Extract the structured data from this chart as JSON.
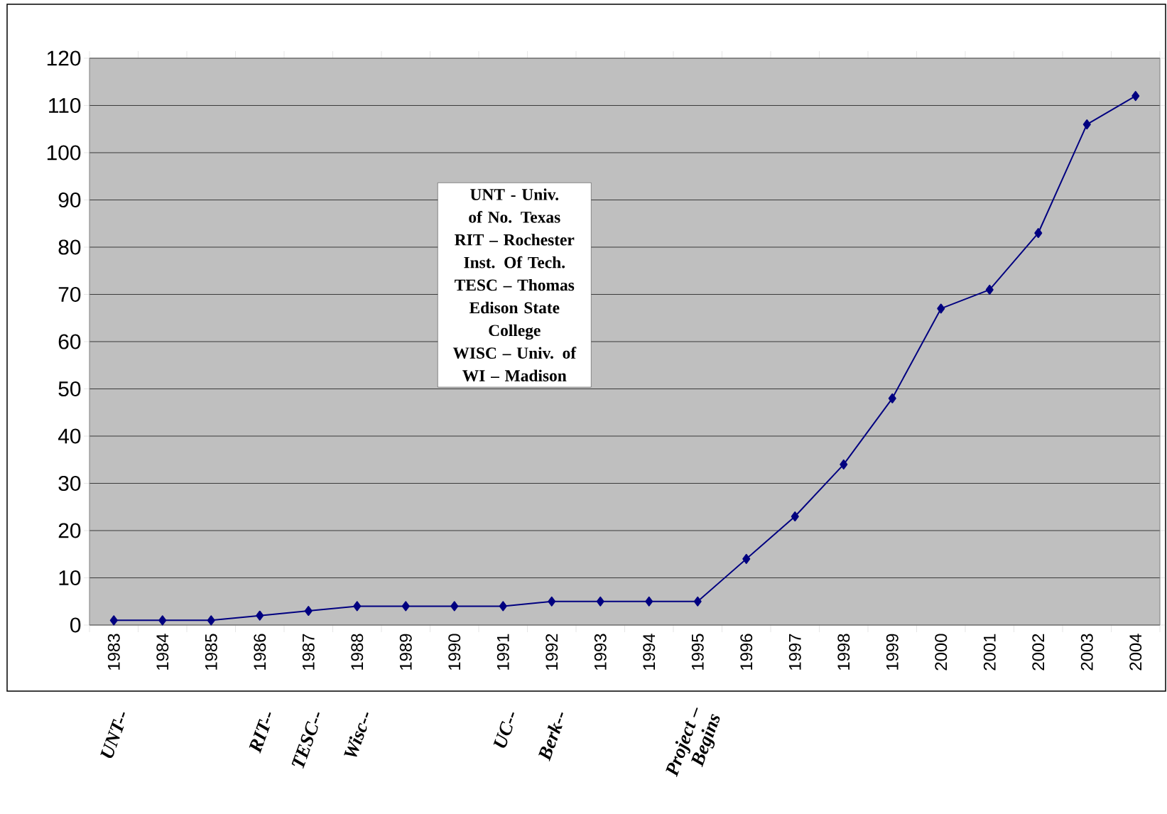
{
  "chart_data": {
    "type": "line",
    "categories": [
      "1983",
      "1984",
      "1985",
      "1986",
      "1987",
      "1988",
      "1989",
      "1990",
      "1991",
      "1992",
      "1993",
      "1994",
      "1995",
      "1996",
      "1997",
      "1998",
      "1999",
      "2000",
      "2001",
      "2002",
      "2003",
      "2004"
    ],
    "series": [
      {
        "color": "#000080",
        "values": [
          1,
          1,
          1,
          2,
          3,
          4,
          4,
          4,
          4,
          5,
          5,
          5,
          5,
          14,
          23,
          34,
          48,
          67,
          71,
          83,
          106,
          112
        ]
      }
    ],
    "ylim": [
      0,
      120
    ],
    "yticks": [
      0,
      10,
      20,
      30,
      40,
      50,
      60,
      70,
      80,
      90,
      100,
      110,
      120
    ],
    "grid": "y",
    "marker": "diamond",
    "line_style": "solid",
    "annotations": [
      "UNT - Univ. of No. Texas",
      "RIT – Rochester Inst. Of Tech.",
      "TESC – Thomas Edison State College",
      "WISC – Univ. of WI – Madison",
      "UNT--",
      "RIT--",
      "TESC--",
      "Wisc--",
      "UC--",
      "Berk--",
      "Project – Begins"
    ]
  }
}
